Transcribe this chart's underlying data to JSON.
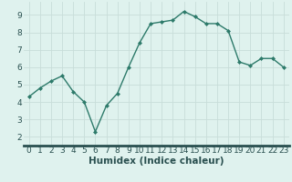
{
  "x": [
    0,
    1,
    2,
    3,
    4,
    5,
    6,
    7,
    8,
    9,
    10,
    11,
    12,
    13,
    14,
    15,
    16,
    17,
    18,
    19,
    20,
    21,
    22,
    23
  ],
  "y": [
    4.3,
    4.8,
    5.2,
    5.5,
    4.6,
    4.0,
    2.3,
    3.8,
    4.5,
    6.0,
    7.4,
    8.5,
    8.6,
    8.7,
    9.2,
    8.9,
    8.5,
    8.5,
    8.1,
    6.3,
    6.1,
    6.5,
    6.5,
    6.0
  ],
  "line_color": "#2d7a6a",
  "marker_color": "#2d7a6a",
  "bg_color": "#dff2ee",
  "grid_color": "#c8ddd9",
  "xlabel": "Humidex (Indice chaleur)",
  "tick_color": "#2a5050",
  "xlim": [
    -0.5,
    23.5
  ],
  "ylim": [
    1.5,
    9.75
  ],
  "yticks": [
    2,
    3,
    4,
    5,
    6,
    7,
    8,
    9
  ],
  "xticks": [
    0,
    1,
    2,
    3,
    4,
    5,
    6,
    7,
    8,
    9,
    10,
    11,
    12,
    13,
    14,
    15,
    16,
    17,
    18,
    19,
    20,
    21,
    22,
    23
  ],
  "tick_fontsize": 6.5,
  "xlabel_fontsize": 7.5,
  "spine_color": "#2a5050",
  "bottom_bar_color": "#2a5050"
}
